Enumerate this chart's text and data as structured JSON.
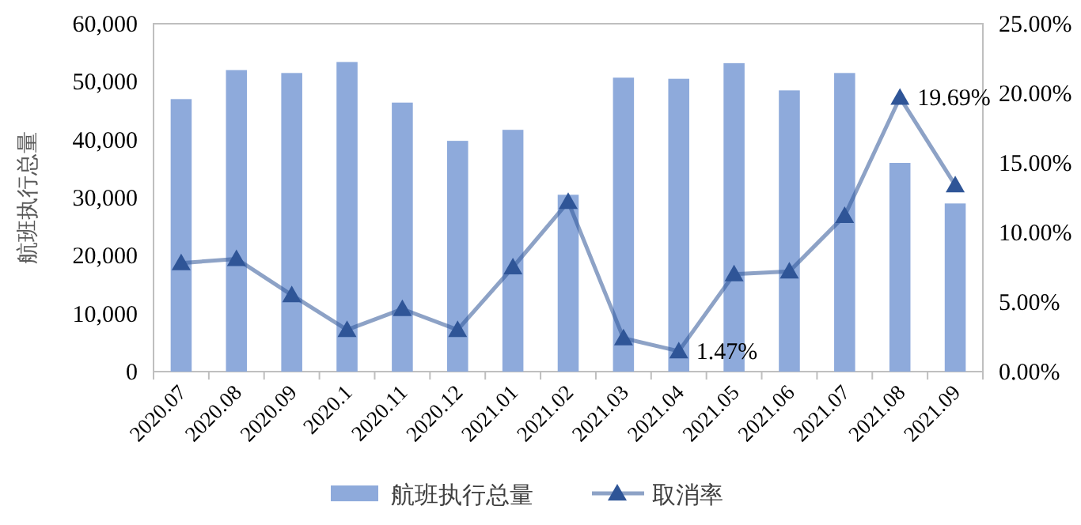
{
  "chart_data": {
    "type": "bar",
    "ylabel": "航班执行总量",
    "legend": "bottom",
    "grid": false,
    "categories": [
      "2020.07",
      "2020.08",
      "2020.09",
      "2020.1",
      "2020.11",
      "2020.12",
      "2021.01",
      "2021.02",
      "2021.03",
      "2021.04",
      "2021.05",
      "2021.06",
      "2021.07",
      "2021.08",
      "2021.09"
    ],
    "series": [
      {
        "name": "航班执行总量",
        "color": "#8eaadb",
        "values": [
          47000,
          52000,
          51500,
          53400,
          46400,
          39800,
          41700,
          30500,
          50700,
          50500,
          53200,
          48500,
          51500,
          36000,
          29000
        ]
      },
      {
        "name": "取消率",
        "type": "line",
        "axis": "y2",
        "color": "#2f5597",
        "marker": "triangle",
        "values": [
          7.8,
          8.1,
          5.5,
          3.0,
          4.5,
          3.0,
          7.5,
          12.2,
          2.4,
          1.47,
          7.0,
          7.2,
          11.2,
          19.69,
          13.4
        ],
        "value_labels": [
          null,
          null,
          null,
          null,
          null,
          null,
          null,
          null,
          null,
          "1.47%",
          null,
          null,
          null,
          "19.69%",
          null
        ]
      }
    ],
    "ylim": [
      0,
      60000
    ],
    "yticks": [
      {
        "value": 0,
        "label": "0"
      },
      {
        "value": 10000,
        "label": "10,000"
      },
      {
        "value": 20000,
        "label": "20,000"
      },
      {
        "value": 30000,
        "label": "30,000"
      },
      {
        "value": 40000,
        "label": "40,000"
      },
      {
        "value": 50000,
        "label": "50,000"
      },
      {
        "value": 60000,
        "label": "60,000"
      }
    ],
    "y2lim": [
      0,
      25
    ],
    "y2ticks": [
      {
        "value": 0,
        "label": "0.00%"
      },
      {
        "value": 5,
        "label": "5.00%"
      },
      {
        "value": 10,
        "label": "10.00%"
      },
      {
        "value": 15,
        "label": "15.00%"
      },
      {
        "value": 20,
        "label": "20.00%"
      },
      {
        "value": 25,
        "label": "25.00%"
      }
    ]
  }
}
